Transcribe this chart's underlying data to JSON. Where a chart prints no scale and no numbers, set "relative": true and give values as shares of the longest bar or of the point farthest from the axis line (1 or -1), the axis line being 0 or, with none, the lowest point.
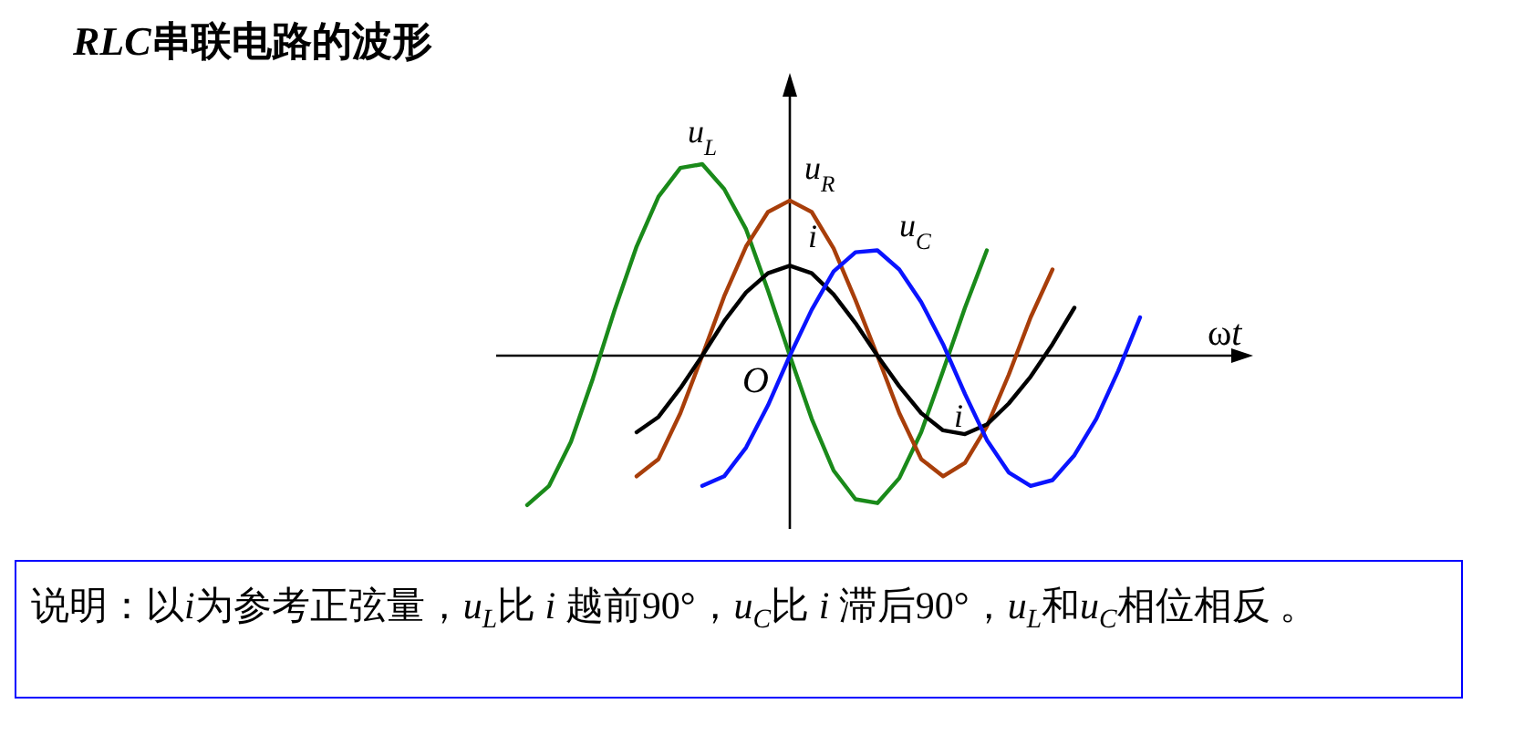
{
  "chart_data": {
    "type": "line",
    "relative": true,
    "title": "RLC串联电路的波形",
    "xlabel": "ωt",
    "legend": false,
    "marker": "none",
    "line_style": "solid",
    "categories": [
      null,
      null,
      null,
      null,
      null,
      null,
      null,
      null,
      null,
      null,
      null,
      null,
      null,
      null,
      null,
      null,
      null,
      null,
      null,
      null,
      null,
      null,
      null,
      null,
      null,
      null,
      null,
      null,
      null,
      null
    ],
    "series": [
      {
        "name": "u$_{L}$",
        "color": "#1a8a1a",
        "values": [
          -0.78,
          -0.68,
          -0.45,
          -0.12,
          0.24,
          0.57,
          0.83,
          0.98,
          1,
          0.87,
          0.66,
          0.34,
          0,
          -0.33,
          -0.6,
          -0.75,
          -0.77,
          -0.64,
          -0.4,
          -0.08,
          0.25,
          0.55,
          null,
          null,
          null,
          null,
          null,
          null,
          null,
          null
        ]
      },
      {
        "name": "u$_{R}$",
        "color": "#a83e0a",
        "values": [
          null,
          null,
          null,
          null,
          null,
          -0.63,
          -0.54,
          -0.3,
          0,
          0.31,
          0.57,
          0.75,
          0.81,
          0.75,
          0.56,
          0.29,
          0,
          -0.3,
          -0.54,
          -0.63,
          -0.56,
          -0.37,
          -0.1,
          0.2,
          0.45,
          null,
          null,
          null,
          null,
          null
        ]
      },
      {
        "name": "i",
        "color": "#000000",
        "values": [
          null,
          null,
          null,
          null,
          null,
          -0.4,
          -0.32,
          -0.17,
          0,
          0.18,
          0.33,
          0.43,
          0.47,
          0.43,
          0.32,
          0.17,
          0,
          -0.16,
          -0.3,
          -0.39,
          -0.41,
          -0.36,
          -0.25,
          -0.11,
          0.06,
          0.25,
          null,
          null,
          null,
          null
        ]
      },
      {
        "name": "u$_{C}$",
        "color": "#0a14ff",
        "values": [
          null,
          null,
          null,
          null,
          null,
          null,
          null,
          null,
          -0.68,
          -0.63,
          -0.48,
          -0.26,
          0,
          0.24,
          0.44,
          0.54,
          0.55,
          0.45,
          0.28,
          0.06,
          -0.2,
          -0.44,
          -0.61,
          -0.68,
          -0.65,
          -0.52,
          -0.33,
          -0.08,
          0.2,
          null
        ]
      }
    ],
    "annotations": [
      "O",
      "说明：以i为参考正弦量，u$_{L}$比 i 越前90°，u$_{C}$比 i 滞后90°，u$_{L}$和u$_{C}$相位相反 。"
    ]
  }
}
